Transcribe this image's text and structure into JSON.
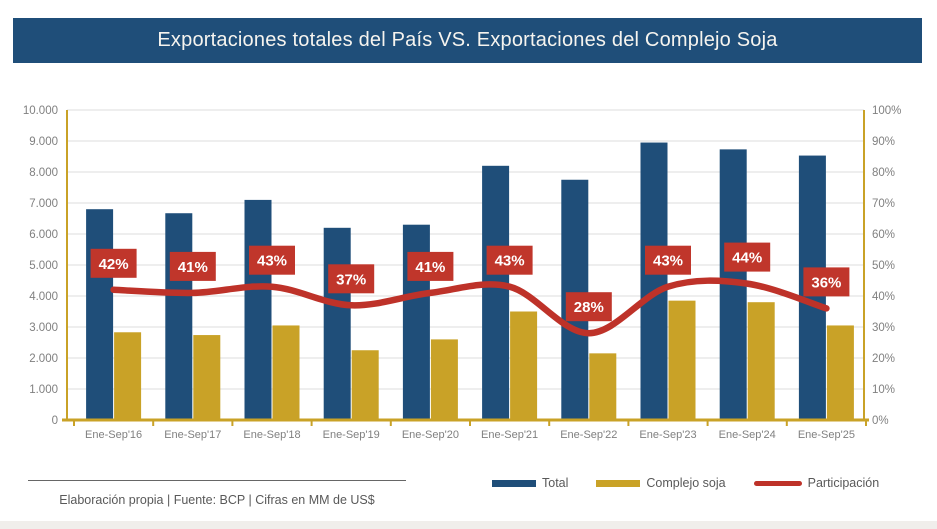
{
  "title_bar": {
    "text": "Exportaciones totales del País VS. Exportaciones del Complejo Soja"
  },
  "footer": {
    "text": "Elaboración propia | Fuente: BCP | Cifras en MM de US$"
  },
  "legend": [
    {
      "label": "Total",
      "color": "#1F4E79",
      "type": "bar"
    },
    {
      "label": "Complejo soja",
      "color": "#C9A227",
      "type": "bar"
    },
    {
      "label": "Participación",
      "color": "#BE3229",
      "type": "line"
    }
  ],
  "colors": {
    "title_bg": "#1F4E79",
    "bar_total": "#1F4E79",
    "bar_soja": "#C9A227",
    "line_participacion": "#BE3229",
    "pct_label_bg": "#C0362B",
    "pct_label_text": "#FFFFFF",
    "axis_frame": "#C9A227",
    "gridline": "#DDDDDD",
    "tick_text": "#808080"
  },
  "chart_data": {
    "type": "bar+line combo",
    "title": "Exportaciones totales del País VS. Exportaciones del Complejo Soja",
    "categories": [
      "Ene-Sep'16",
      "Ene-Sep'17",
      "Ene-Sep'18",
      "Ene-Sep'19",
      "Ene-Sep'20",
      "Ene-Sep'21",
      "Ene-Sep'22",
      "Ene-Sep'23",
      "Ene-Sep'24",
      "Ene-Sep'25"
    ],
    "series": [
      {
        "name": "Total",
        "type": "bar",
        "axis": "left",
        "color": "#1F4E79",
        "values": [
          6800,
          6670,
          7100,
          6200,
          6300,
          8200,
          7750,
          8950,
          8730,
          8530
        ]
      },
      {
        "name": "Complejo soja",
        "type": "bar",
        "axis": "left",
        "color": "#C9A227",
        "values": [
          2830,
          2740,
          3050,
          2250,
          2600,
          3500,
          2150,
          3850,
          3800,
          3050
        ]
      },
      {
        "name": "Participación",
        "type": "line",
        "axis": "right",
        "color": "#BE3229",
        "values": [
          42,
          41,
          43,
          37,
          41,
          43,
          28,
          43,
          44,
          36
        ],
        "labels": [
          "42%",
          "41%",
          "43%",
          "37%",
          "41%",
          "43%",
          "28%",
          "43%",
          "44%",
          "36%"
        ]
      }
    ],
    "left_axis": {
      "min": 0,
      "max": 10000,
      "step": 1000,
      "tick_labels": [
        "0",
        "1.000",
        "2.000",
        "3.000",
        "4.000",
        "5.000",
        "6.000",
        "7.000",
        "8.000",
        "9.000",
        "10.000"
      ]
    },
    "right_axis": {
      "min": 0,
      "max": 100,
      "step": 10,
      "tick_labels": [
        "0%",
        "10%",
        "20%",
        "30%",
        "40%",
        "50%",
        "60%",
        "70%",
        "80%",
        "90%",
        "100%"
      ]
    },
    "grid": true,
    "legend_position": "bottom-right",
    "units": "MM de US$"
  }
}
